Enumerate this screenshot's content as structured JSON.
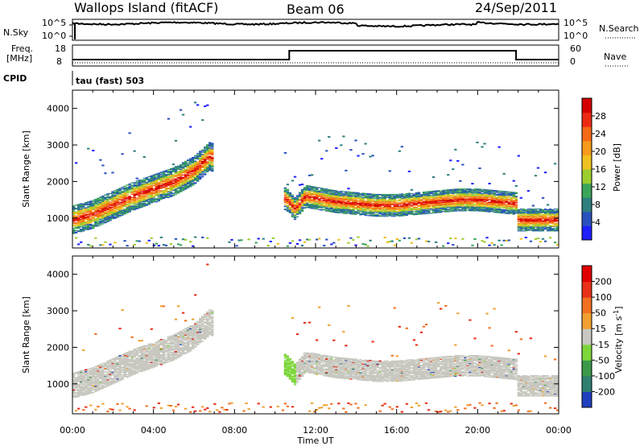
{
  "header": {
    "station": "Wallops Island (fitACF)",
    "beam": "Beam 06",
    "date": "24/Sep/2011"
  },
  "noise_panel": {
    "left_label": "N.Sky",
    "left_ticks": [
      "10^5",
      "10^0"
    ],
    "right_label": "N.Search",
    "right_ticks": [
      "10^5",
      "10^0"
    ],
    "legend_style": "dotted"
  },
  "freq_panel": {
    "left_label_1": "Freq.",
    "left_label_2": "[MHz]",
    "left_ticks": [
      "18",
      "8"
    ],
    "right_label": "Nave",
    "right_ticks": [
      "60",
      "0"
    ],
    "freq_steps": [
      {
        "t0": 0,
        "t1": 10.7,
        "level": "low"
      },
      {
        "t0": 10.7,
        "t1": 21.9,
        "level": "high"
      },
      {
        "t0": 21.9,
        "t1": 24,
        "level": "low"
      }
    ]
  },
  "cpid": {
    "label": "CPID",
    "mode": "tau (fast) 503"
  },
  "chart_data": [
    {
      "type": "heatmap",
      "panel": "power",
      "ylabel": "Slant Range [km]",
      "xlabel": "Time UT",
      "xlim": [
        0,
        24
      ],
      "ylim": [
        180,
        4500
      ],
      "y_ticks": [
        1000,
        2000,
        3000,
        4000
      ],
      "x_tick_labels": [
        "00:00",
        "04:00",
        "08:00",
        "12:00",
        "16:00",
        "20:00",
        "00:00"
      ],
      "colorbar": {
        "label": "Power [dB]",
        "ticks": [
          "4",
          "8",
          "12",
          "16",
          "20",
          "24",
          "28"
        ],
        "colors": [
          "#1f1fff",
          "#2a52be",
          "#2f7f7f",
          "#3aa55a",
          "#9ccd2e",
          "#f0c020",
          "#f59a1c",
          "#f56a17",
          "#ec2a14",
          "#d40000"
        ]
      },
      "echo_band": {
        "t": [
          0,
          1,
          2,
          3,
          4,
          5,
          6,
          6.8,
          10.6,
          11,
          11.5,
          12,
          13,
          14,
          15,
          16,
          17,
          18,
          19,
          20,
          21,
          21.9,
          22,
          24
        ],
        "center_km": [
          950,
          1100,
          1350,
          1600,
          1800,
          2000,
          2300,
          2700,
          1500,
          1250,
          1600,
          1550,
          1450,
          1400,
          1350,
          1350,
          1400,
          1450,
          1500,
          1500,
          1450,
          1400,
          950,
          950
        ]
      }
    },
    {
      "type": "heatmap",
      "panel": "velocity",
      "ylabel": "Slant Range [km]",
      "xlabel": "Time UT",
      "xlim": [
        0,
        24
      ],
      "ylim": [
        180,
        4500
      ],
      "y_ticks": [
        1000,
        2000,
        3000,
        4000
      ],
      "x_tick_labels": [
        "00:00",
        "04:00",
        "08:00",
        "12:00",
        "16:00",
        "20:00",
        "00:00"
      ],
      "colorbar": {
        "label": "Velocity [m s",
        "label_sup": "-1",
        "label_end": "]",
        "ticks": [
          "200",
          "100",
          "50",
          "15",
          "-15",
          "-50",
          "-100",
          "-200"
        ],
        "colors": [
          "#1f3fbf",
          "#2f7f6f",
          "#3a9a4a",
          "#7dd63a",
          "#c8c8c0",
          "#f0a030",
          "#f07020",
          "#e83018",
          "#e00000"
        ]
      }
    }
  ]
}
